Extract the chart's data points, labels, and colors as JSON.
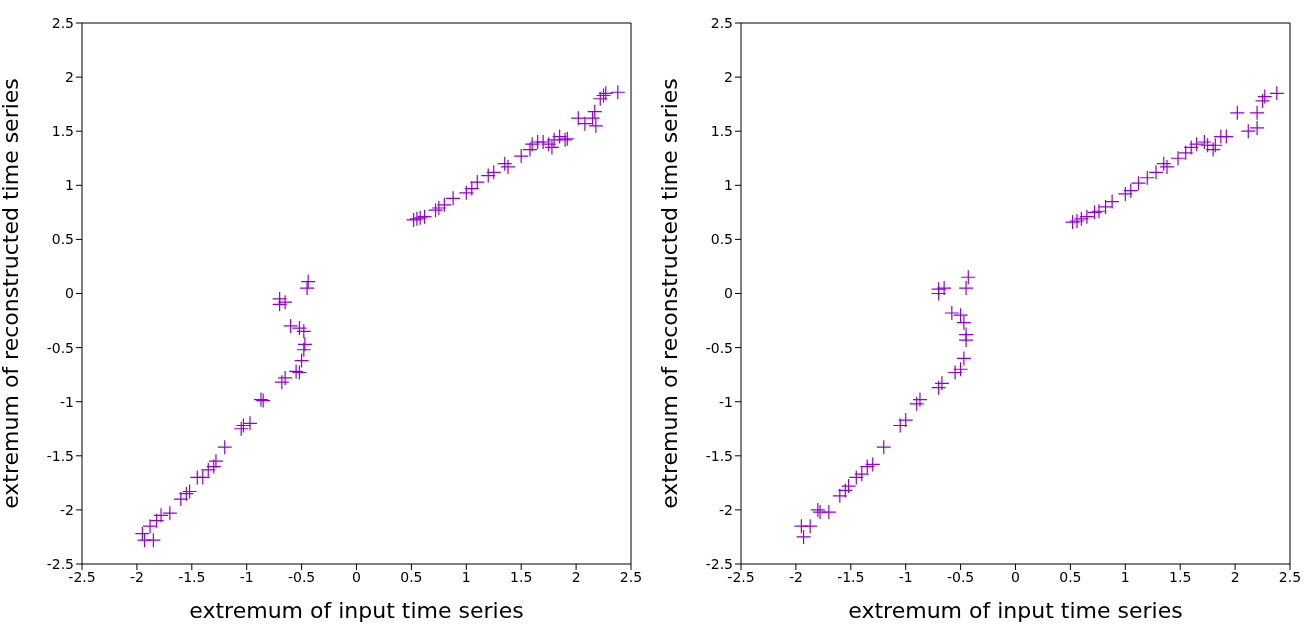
{
  "chart_data": [
    {
      "type": "scatter",
      "xlabel": "extremum of input time series",
      "ylabel": "extremum of reconstructed time series",
      "xlim": [
        -2.5,
        2.5
      ],
      "ylim": [
        -2.5,
        2.5
      ],
      "xticks": [
        -2.5,
        -2,
        -1.5,
        -1,
        -0.5,
        0,
        0.5,
        1,
        1.5,
        2,
        2.5
      ],
      "yticks": [
        -2.5,
        -2,
        -1.5,
        -1,
        -0.5,
        0,
        0.5,
        1,
        1.5,
        2,
        2.5
      ],
      "marker": "cross",
      "series": [
        {
          "color": "#9400d3",
          "x": [
            -1.95,
            -1.93,
            -1.85,
            -1.88,
            -1.82,
            -1.78,
            -1.7,
            -1.6,
            -1.55,
            -1.52,
            -1.45,
            -1.4,
            -1.35,
            -1.3,
            -1.28,
            -1.2,
            -1.05,
            -1.03,
            -0.97,
            -0.87,
            -0.85,
            -0.68,
            -0.65,
            -0.55,
            -0.52,
            -0.5,
            -0.48,
            -0.47,
            -0.52,
            -0.48,
            -0.6,
            -0.65,
            -0.7,
            -0.7,
            -0.45,
            -0.44,
            0.52,
            0.55,
            0.58,
            0.62,
            0.72,
            0.75,
            0.8,
            0.88,
            1.0,
            1.05,
            1.1,
            1.2,
            1.25,
            1.35,
            1.38,
            1.5,
            1.58,
            1.6,
            1.65,
            1.7,
            1.75,
            1.78,
            1.8,
            1.85,
            1.9,
            1.92,
            2.02,
            2.08,
            2.15,
            2.18,
            2.17,
            2.22,
            2.25,
            2.27,
            2.38
          ],
          "values": [
            -2.22,
            -2.28,
            -2.28,
            -2.15,
            -2.1,
            -2.05,
            -2.03,
            -1.9,
            -1.85,
            -1.83,
            -1.7,
            -1.7,
            -1.63,
            -1.6,
            -1.55,
            -1.42,
            -1.25,
            -1.22,
            -1.2,
            -0.98,
            -0.99,
            -0.82,
            -0.78,
            -0.72,
            -0.73,
            -0.62,
            -0.52,
            -0.47,
            -0.32,
            -0.35,
            -0.3,
            -0.08,
            -0.1,
            -0.05,
            0.05,
            0.11,
            0.68,
            0.69,
            0.7,
            0.71,
            0.77,
            0.79,
            0.82,
            0.88,
            0.93,
            0.97,
            1.03,
            1.09,
            1.12,
            1.2,
            1.17,
            1.27,
            1.33,
            1.38,
            1.4,
            1.4,
            1.38,
            1.35,
            1.42,
            1.45,
            1.42,
            1.43,
            1.62,
            1.57,
            1.62,
            1.55,
            1.68,
            1.8,
            1.83,
            1.85,
            1.86
          ]
        }
      ]
    },
    {
      "type": "scatter",
      "xlabel": "extremum of input time series",
      "ylabel": "extremum of reconstructed time series",
      "xlim": [
        -2.5,
        2.5
      ],
      "ylim": [
        -2.5,
        2.5
      ],
      "xticks": [
        -2.5,
        -2,
        -1.5,
        -1,
        -0.5,
        0,
        0.5,
        1,
        1.5,
        2,
        2.5
      ],
      "yticks": [
        -2.5,
        -2,
        -1.5,
        -1,
        -0.5,
        0,
        0.5,
        1,
        1.5,
        2,
        2.5
      ],
      "marker": "cross",
      "series": [
        {
          "color": "#9400d3",
          "x": [
            -1.95,
            -1.93,
            -1.87,
            -1.8,
            -1.78,
            -1.7,
            -1.6,
            -1.55,
            -1.52,
            -1.45,
            -1.4,
            -1.35,
            -1.3,
            -1.2,
            -1.05,
            -1.0,
            -0.9,
            -0.87,
            -0.7,
            -0.67,
            -0.55,
            -0.5,
            -0.47,
            -0.45,
            -0.45,
            -0.47,
            -0.5,
            -0.58,
            -0.7,
            -0.65,
            -0.7,
            -0.45,
            -0.43,
            0.52,
            0.56,
            0.6,
            0.65,
            0.72,
            0.76,
            0.82,
            0.88,
            1.0,
            1.05,
            1.12,
            1.2,
            1.28,
            1.35,
            1.38,
            1.48,
            1.55,
            1.6,
            1.65,
            1.72,
            1.75,
            1.8,
            1.82,
            1.87,
            1.92,
            2.02,
            2.12,
            2.2,
            2.2,
            2.25,
            2.27,
            2.38
          ],
          "values": [
            -2.15,
            -2.25,
            -2.15,
            -2.0,
            -2.02,
            -2.02,
            -1.87,
            -1.82,
            -1.78,
            -1.7,
            -1.67,
            -1.6,
            -1.58,
            -1.42,
            -1.22,
            -1.17,
            -1.02,
            -0.98,
            -0.87,
            -0.83,
            -0.73,
            -0.7,
            -0.6,
            -0.43,
            -0.38,
            -0.27,
            -0.2,
            -0.18,
            0.0,
            0.05,
            0.04,
            0.05,
            0.15,
            0.66,
            0.67,
            0.69,
            0.71,
            0.75,
            0.76,
            0.8,
            0.85,
            0.92,
            0.95,
            1.02,
            1.07,
            1.12,
            1.2,
            1.17,
            1.25,
            1.3,
            1.35,
            1.38,
            1.4,
            1.37,
            1.33,
            1.37,
            1.45,
            1.45,
            1.67,
            1.5,
            1.53,
            1.67,
            1.78,
            1.82,
            1.85
          ]
        }
      ]
    }
  ]
}
